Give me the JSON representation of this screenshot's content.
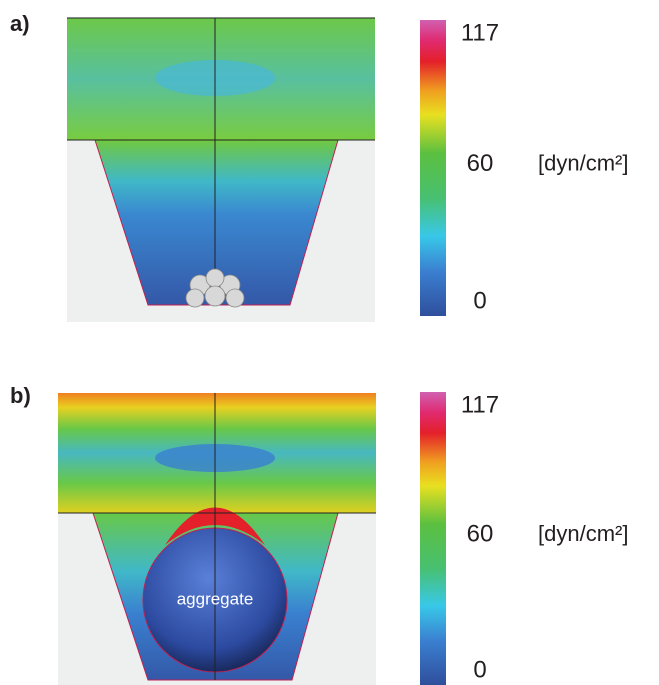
{
  "panels": [
    {
      "label": "a)",
      "colorbar": {
        "ticks": [
          0,
          60,
          117
        ]
      },
      "unit": "[dyn/cm²]"
    },
    {
      "label": "b)",
      "colorbar": {
        "ticks": [
          0,
          60,
          117
        ]
      },
      "unit": "[dyn/cm²]",
      "annotation": "aggregate"
    }
  ]
}
